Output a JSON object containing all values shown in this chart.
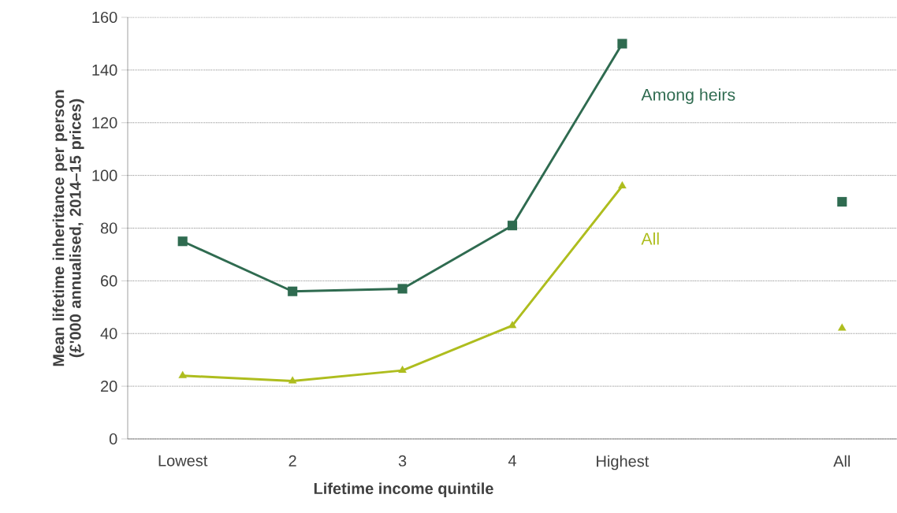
{
  "chart_data": {
    "type": "line",
    "xlabel": "Lifetime income quintile",
    "ylabel": "Mean lifetime inheritance per person (£'000 annualised, 2014–15 prices)",
    "categories": [
      "Lowest",
      "2",
      "3",
      "4",
      "Highest",
      null,
      "All"
    ],
    "series": [
      {
        "name": "Among heirs",
        "color": "#2f6b50",
        "marker": "square",
        "values": [
          75,
          56,
          57,
          81,
          150,
          null,
          90
        ]
      },
      {
        "name": "All",
        "color": "#aebd1e",
        "marker": "triangle",
        "values": [
          24,
          22,
          26,
          43,
          96,
          null,
          42
        ]
      }
    ],
    "ylim": [
      0,
      160
    ],
    "yticks": [
      0,
      20,
      40,
      60,
      80,
      100,
      120,
      140,
      160
    ],
    "grid": "y",
    "line_style": "solid"
  }
}
